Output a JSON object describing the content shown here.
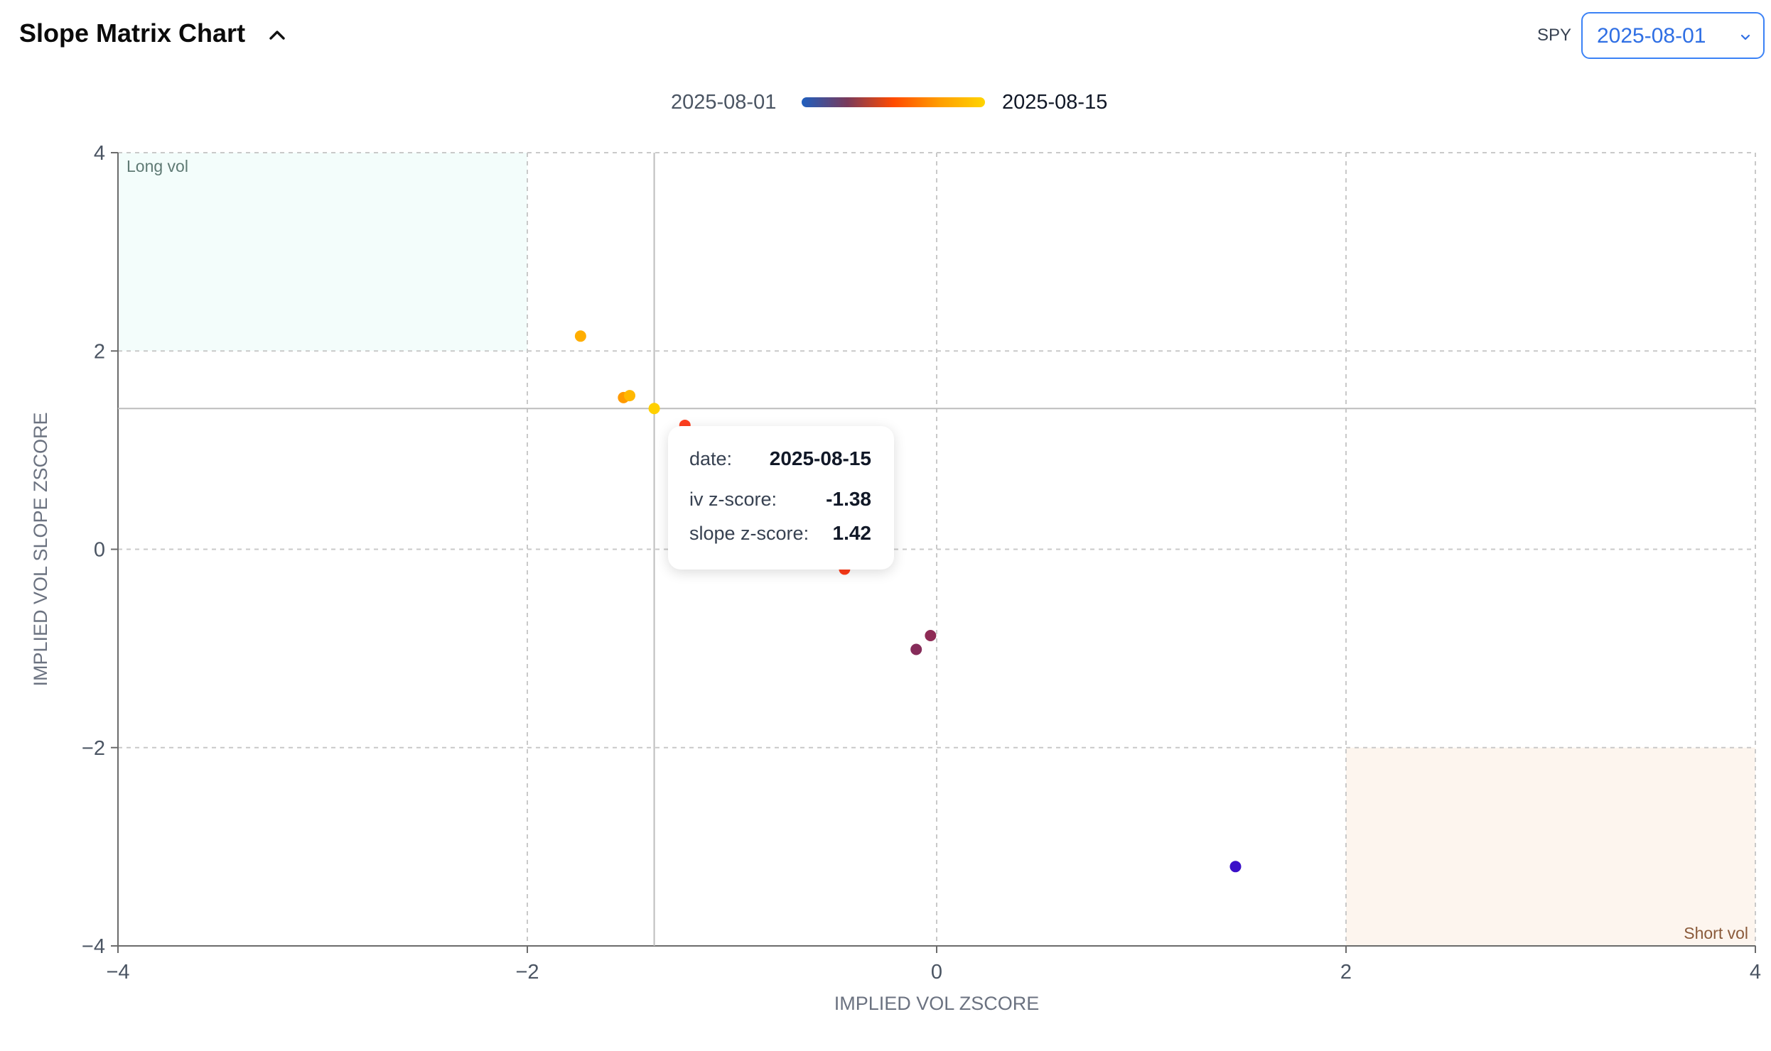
{
  "header": {
    "title": "Slope Matrix Chart",
    "ticker": "SPY",
    "date_select_value": "2025-08-01"
  },
  "legend": {
    "start_label": "2025-08-01",
    "end_label": "2025-08-15",
    "gradient_colors": [
      "#1f5fbf",
      "#7a3a5a",
      "#ff4a00",
      "#ff9d00",
      "#ffd400"
    ]
  },
  "chart_data": {
    "type": "scatter",
    "xlabel": "IMPLIED VOL ZSCORE",
    "ylabel": "IMPLIED VOL SLOPE ZSCORE",
    "xlim": [
      -4,
      4
    ],
    "ylim": [
      -4,
      4
    ],
    "x_ticks": [
      -4,
      -2,
      0,
      2,
      4
    ],
    "y_ticks": [
      -4,
      -2,
      0,
      2,
      4
    ],
    "x_tick_labels": [
      "−4",
      "−2",
      "0",
      "2",
      "4"
    ],
    "y_tick_labels": [
      "−4",
      "−2",
      "0",
      "2",
      "4"
    ],
    "grid": true,
    "regions": [
      {
        "label": "Long vol",
        "x": [
          -4,
          -2
        ],
        "y": [
          2,
          4
        ],
        "color": "#f3fdfb",
        "label_color": "#5f7a74"
      },
      {
        "label": "Short vol",
        "x": [
          2,
          4
        ],
        "y": [
          -4,
          -2
        ],
        "color": "#fdf5ee",
        "label_color": "#8a5a3a"
      }
    ],
    "crosshair": {
      "x": -1.38,
      "y": 1.42
    },
    "points": [
      {
        "x": 1.46,
        "y": -3.2,
        "color": "#3a0fc8"
      },
      {
        "x": -0.1,
        "y": -1.01,
        "color": "#862c5a"
      },
      {
        "x": -0.03,
        "y": -0.87,
        "color": "#8e2a55"
      },
      {
        "x": -0.45,
        "y": -0.2,
        "color": "#ff3b18"
      },
      {
        "x": -1.23,
        "y": 1.25,
        "color": "#ff4020"
      },
      {
        "x": -1.74,
        "y": 2.15,
        "color": "#ffae00"
      },
      {
        "x": -1.53,
        "y": 1.53,
        "color": "#ff9a00"
      },
      {
        "x": -1.5,
        "y": 1.55,
        "color": "#ffb800"
      },
      {
        "x": -1.38,
        "y": 1.42,
        "color": "#ffd000"
      }
    ]
  },
  "tooltip": {
    "date_label": "date:",
    "date_value": "2025-08-15",
    "iv_label": "iv z-score:",
    "iv_value": "-1.38",
    "slope_label": "slope z-score:",
    "slope_value": "1.42"
  }
}
